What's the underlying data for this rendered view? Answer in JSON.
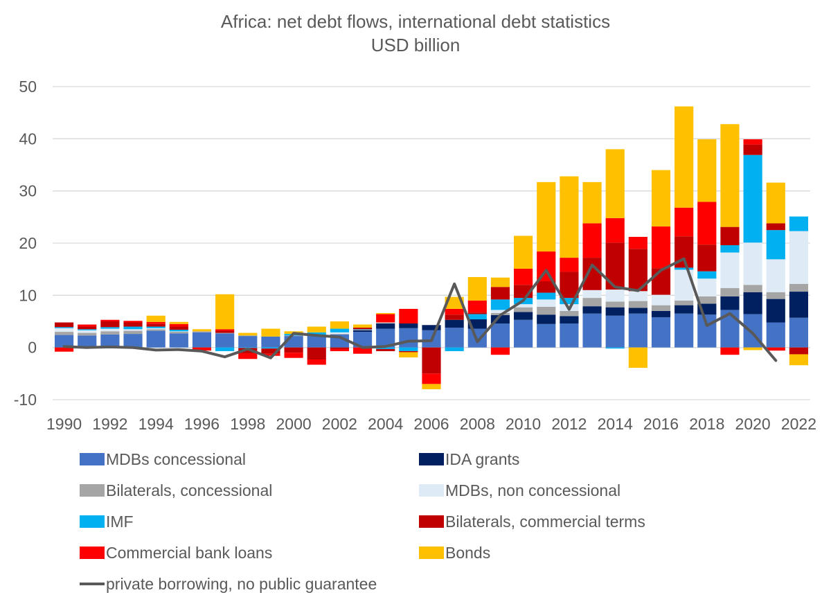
{
  "chart_data": {
    "type": "bar",
    "stacked": true,
    "title": "Africa: net debt flows, international debt statistics",
    "subtitle": "USD billion",
    "xlabel": "",
    "ylabel": "",
    "ylim": [
      -10,
      50
    ],
    "yticks": [
      -10,
      0,
      10,
      20,
      30,
      40,
      50
    ],
    "grid": true,
    "legend_position": "bottom",
    "categories": [
      1990,
      1991,
      1992,
      1993,
      1994,
      1995,
      1996,
      1997,
      1998,
      1999,
      2000,
      2001,
      2002,
      2003,
      2004,
      2005,
      2006,
      2007,
      2008,
      2009,
      2010,
      2011,
      2012,
      2013,
      2014,
      2015,
      2016,
      2017,
      2018,
      2019,
      2020,
      2021,
      2022
    ],
    "xtick_labels": [
      "1990",
      "1992",
      "1994",
      "1996",
      "1998",
      "2000",
      "2002",
      "2004",
      "2006",
      "2008",
      "2010",
      "2012",
      "2014",
      "2016",
      "2018",
      "2020",
      "2022"
    ],
    "series": [
      {
        "name": "MDBs concessional",
        "color": "#4472C4",
        "values": [
          2.4,
          2.3,
          2.5,
          2.6,
          3.2,
          2.7,
          2.9,
          2.7,
          2.2,
          2.1,
          2.2,
          2.3,
          2.5,
          3.0,
          3.6,
          3.7,
          3.3,
          3.8,
          3.6,
          4.6,
          5.3,
          4.5,
          4.6,
          6.5,
          6.1,
          6.5,
          5.8,
          6.5,
          6.3,
          7.2,
          6.4,
          4.8,
          5.7
        ]
      },
      {
        "name": "IDA grants",
        "color": "#002060",
        "values": [
          0,
          0,
          0,
          0,
          0,
          0,
          0,
          0,
          0,
          0,
          0,
          0,
          0,
          0.3,
          1.0,
          0.9,
          1.0,
          1.5,
          1.8,
          1.6,
          1.5,
          1.8,
          1.4,
          1.4,
          1.6,
          1.1,
          1.2,
          1.6,
          2.1,
          2.6,
          4.2,
          4.5,
          5.0
        ]
      },
      {
        "name": "Bilaterals, concessional",
        "color": "#A5A5A5",
        "values": [
          0.6,
          0.5,
          0.6,
          0.6,
          0.3,
          0.3,
          0.2,
          0.1,
          0.1,
          0,
          0.1,
          0.1,
          0.1,
          0.1,
          0.1,
          0,
          0,
          0,
          0,
          0.4,
          0.9,
          1.5,
          1.0,
          1.6,
          1.1,
          1.3,
          1.1,
          0.9,
          1.4,
          1.6,
          1.4,
          1.3,
          1.5
        ]
      },
      {
        "name": "MDBs, non concessional",
        "color": "#DEEBF7",
        "values": [
          0.7,
          0.5,
          0.5,
          0.3,
          0.2,
          0.1,
          0,
          0,
          0,
          0,
          0,
          0,
          0.3,
          0,
          0.1,
          0,
          0,
          0,
          0,
          0.6,
          0.6,
          1.4,
          1.3,
          1.5,
          2.3,
          1.9,
          2.0,
          5.9,
          3.4,
          6.8,
          8.1,
          6.3,
          10.1
        ]
      },
      {
        "name": "IMF",
        "color": "#00B0F0",
        "values": [
          0.2,
          0.2,
          0.3,
          0.5,
          0.3,
          0.3,
          0,
          -0.7,
          -0.1,
          -0.2,
          0.3,
          0.5,
          0.7,
          0.1,
          -0.3,
          -0.7,
          0,
          -0.7,
          1.0,
          2.0,
          1.2,
          1.3,
          1.2,
          0,
          -0.2,
          0,
          0,
          0.4,
          1.4,
          1.4,
          16.8,
          5.6,
          2.8
        ]
      },
      {
        "name": "Bilaterals, commercial terms",
        "color": "#C00000",
        "values": [
          0.9,
          0.5,
          1.1,
          0.8,
          0.5,
          0.6,
          0,
          0.4,
          -1.0,
          -1.0,
          -1.0,
          -2.3,
          -0.3,
          0.3,
          -0.4,
          -0.2,
          -5.0,
          1.0,
          0.3,
          2.4,
          2.5,
          2.2,
          5.0,
          6.2,
          9.0,
          8.1,
          5.1,
          6.0,
          5.1,
          3.5,
          2.0,
          1.3,
          -1.3
        ]
      },
      {
        "name": "Commercial bank loans",
        "color": "#FF0000",
        "values": [
          -0.8,
          0.4,
          0.3,
          0.3,
          0.4,
          0.5,
          -0.6,
          0.3,
          -1.1,
          -0.4,
          -1.0,
          -1.0,
          -0.4,
          -1.2,
          1.6,
          2.8,
          -2.0,
          1.1,
          2.3,
          -1.4,
          3.1,
          5.7,
          2.7,
          6.6,
          4.7,
          2.3,
          8.0,
          5.5,
          8.2,
          -1.4,
          1.0,
          -0.6,
          0
        ]
      },
      {
        "name": "Bonds",
        "color": "#FFC000",
        "values": [
          0,
          0,
          0,
          0,
          1.2,
          0.4,
          0.4,
          6.7,
          0.5,
          1.5,
          0.5,
          1.1,
          1.4,
          0.6,
          0.2,
          -1.0,
          -1.0,
          2.3,
          4.5,
          1.8,
          6.3,
          13.3,
          15.6,
          7.9,
          13.2,
          -3.9,
          10.8,
          19.4,
          12.0,
          19.7,
          -0.5,
          7.8,
          -2.1
        ]
      }
    ],
    "line_series": {
      "name": "private borrowing, no public guarantee",
      "color": "#595959",
      "values": [
        0.2,
        0,
        0.1,
        0,
        -0.5,
        -0.4,
        -0.7,
        -1.8,
        -0.3,
        -2.0,
        2.7,
        2.3,
        2.0,
        0,
        0.2,
        1.2,
        1.3,
        12.2,
        1.1,
        6.2,
        9.0,
        14.8,
        7.3,
        15.8,
        11.6,
        10.9,
        14.8,
        17.0,
        4.2,
        6.5,
        2.7,
        -2.5,
        null
      ]
    }
  }
}
